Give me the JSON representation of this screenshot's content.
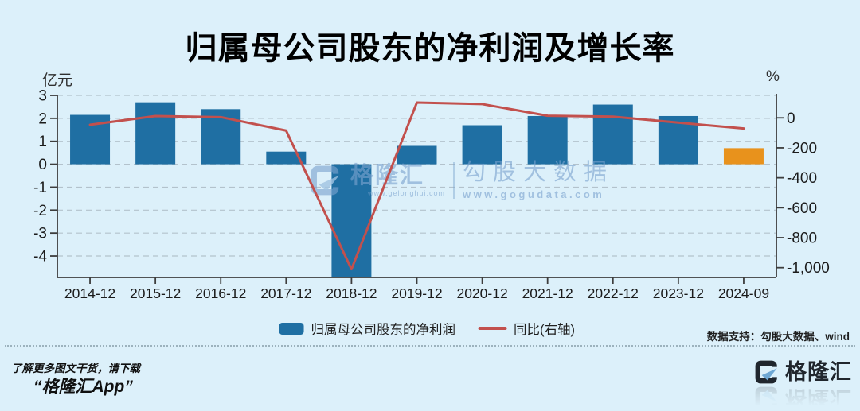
{
  "title": "归属母公司股东的净利润及增长率",
  "colors": {
    "background": "#dcf0fa",
    "bar": "#1f6fa3",
    "bar_highlight": "#e8921c",
    "line": "#c2504d",
    "grid": "#b3c2cc",
    "axis": "#3d3d3d",
    "text": "#1b1b1b",
    "watermark": "rgba(122,163,206,0.62)",
    "logo_dark": "#20262d",
    "logo_blue": "#6fa8d4"
  },
  "chart_data": {
    "type": "bar+line",
    "title": "归属母公司股东的净利润及增长率",
    "categories": [
      "2014-12",
      "2015-12",
      "2016-12",
      "2017-12",
      "2018-12",
      "2019-12",
      "2020-12",
      "2021-12",
      "2022-12",
      "2023-12",
      "2024-09"
    ],
    "series": [
      {
        "name": "归属母公司股东的净利润",
        "type": "bar",
        "axis": "left",
        "unit": "亿元",
        "values": [
          2.15,
          2.7,
          2.4,
          0.55,
          -4.9,
          0.8,
          1.7,
          2.1,
          2.6,
          2.1,
          0.7
        ],
        "point_colors": [
          "#1f6fa3",
          "#1f6fa3",
          "#1f6fa3",
          "#1f6fa3",
          "#1f6fa3",
          "#1f6fa3",
          "#1f6fa3",
          "#1f6fa3",
          "#1f6fa3",
          "#1f6fa3",
          "#e8921c"
        ]
      },
      {
        "name": "同比(右轴)",
        "type": "line",
        "axis": "right",
        "unit": "%",
        "values": [
          -46,
          12,
          5,
          -85,
          -1010,
          102,
          92,
          14,
          8,
          -32,
          -71
        ]
      }
    ],
    "left_axis": {
      "label": "亿元",
      "max": 3,
      "min": -4.9,
      "ticks": [
        3,
        2,
        1,
        0,
        -1,
        -2,
        -3,
        -4
      ]
    },
    "right_axis": {
      "label": "%",
      "max": 150,
      "min": -1060,
      "ticks": [
        0,
        -200,
        -400,
        -600,
        -800,
        -1000
      ],
      "tick_labels": [
        "0",
        "-200",
        "-400",
        "-600",
        "-800",
        "-1,000"
      ]
    },
    "grid": true,
    "legend_position": "bottom"
  },
  "legend": {
    "bar_label": "归属母公司股东的净利润",
    "line_label": "同比(右轴)"
  },
  "watermark": {
    "brand": "格隆汇",
    "brand_url": "www.gelonghui.com",
    "name": "勾股大数据",
    "url": "www.gogudata.com"
  },
  "data_support": "数据支持：勾股大数据、wind",
  "footer": {
    "line1": "了解更多图文干货，请下载",
    "line2": "“格隆汇App”",
    "logo_text": "格隆汇"
  }
}
